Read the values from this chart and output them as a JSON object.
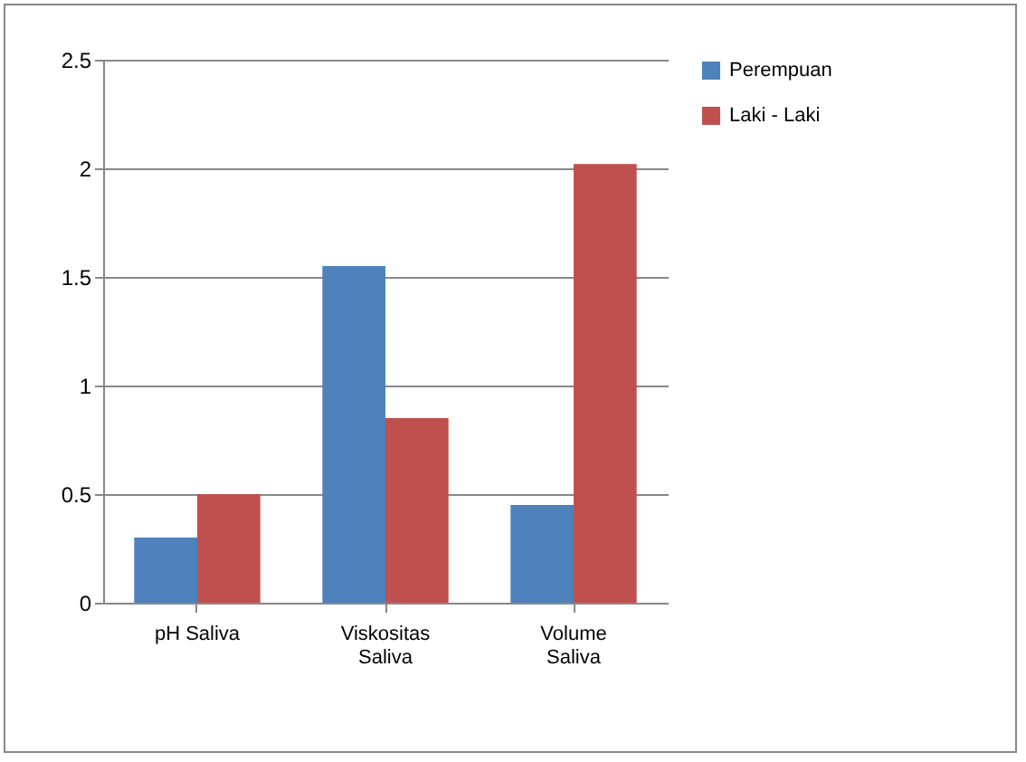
{
  "chart_data": {
    "type": "bar",
    "categories": [
      "pH Saliva",
      "Viskositas Saliva",
      "Volume Saliva"
    ],
    "series": [
      {
        "name": "Perempuan",
        "color": "#4f81bd",
        "values": [
          0.3,
          1.55,
          0.45
        ]
      },
      {
        "name": "Laki - Laki",
        "color": "#c0504d",
        "values": [
          0.5,
          0.85,
          2.02
        ]
      }
    ],
    "ylim": [
      0,
      2.5
    ],
    "yticks": [
      0,
      0.5,
      1,
      1.5,
      2,
      2.5
    ],
    "grid": "y",
    "legend": "right"
  }
}
